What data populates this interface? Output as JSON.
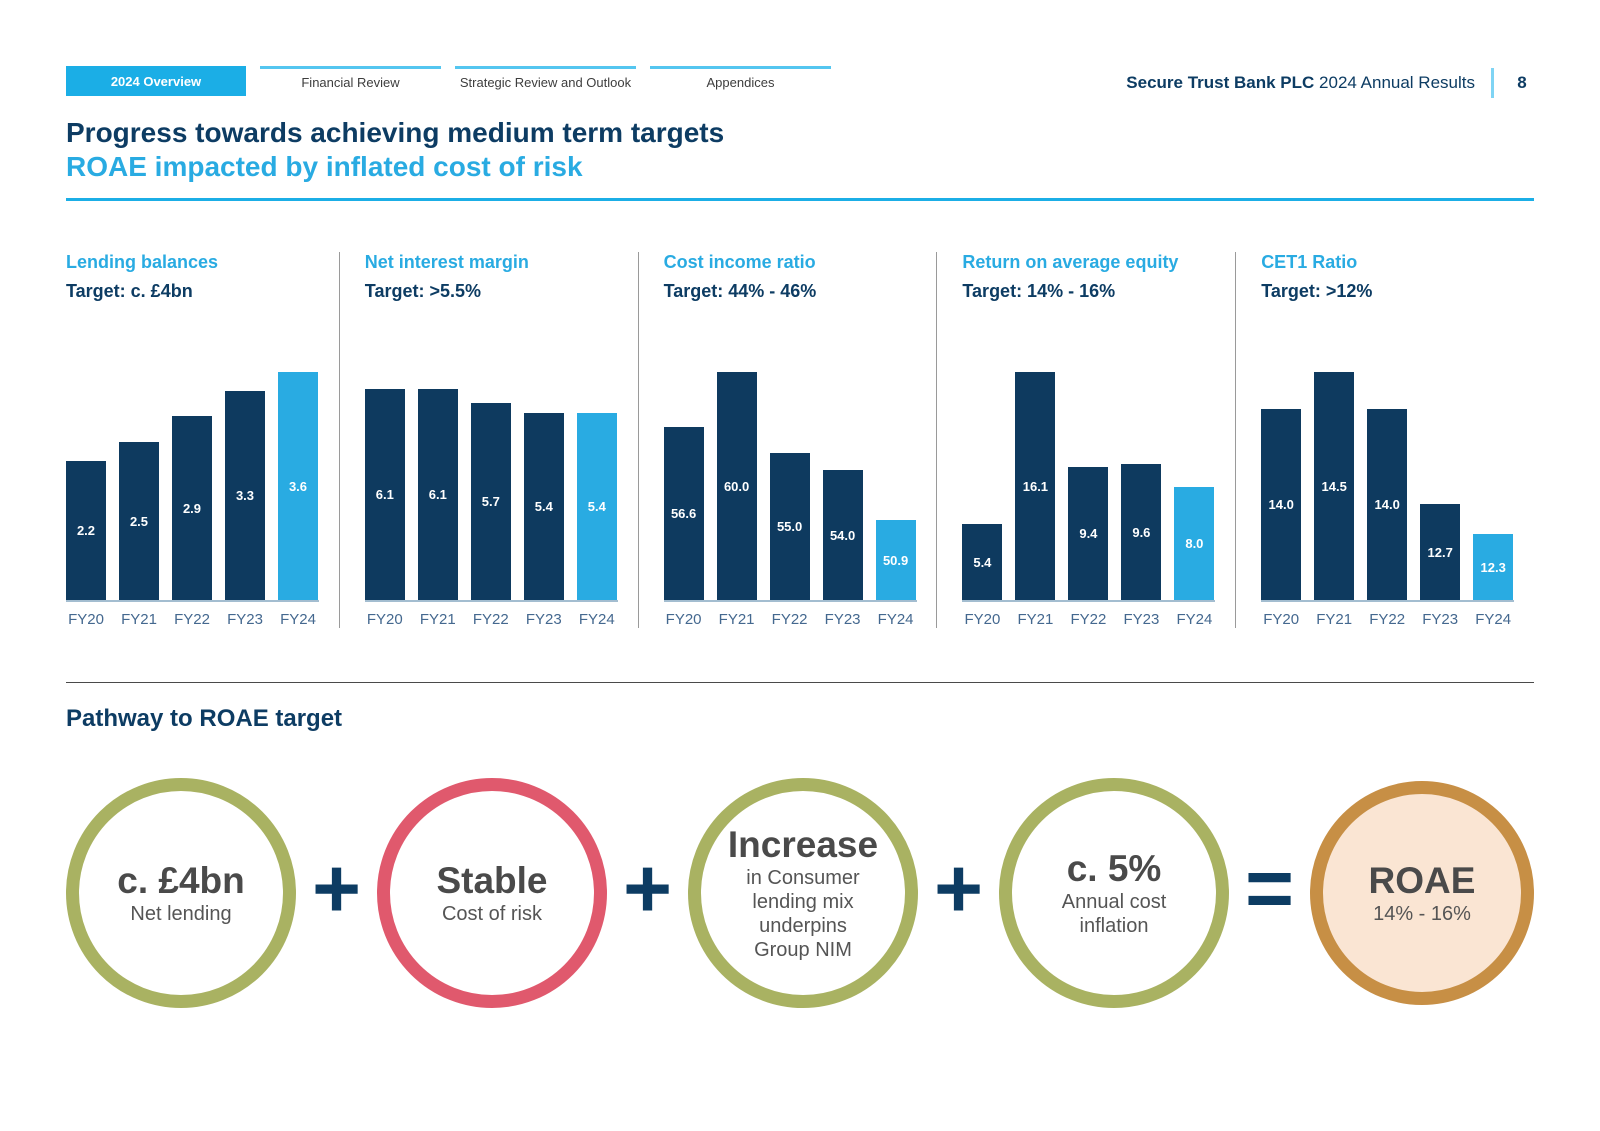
{
  "header": {
    "tabs": [
      {
        "label": "2024 Overview",
        "active": true
      },
      {
        "label": "Financial Review",
        "active": false
      },
      {
        "label": "Strategic Review and Outlook",
        "active": false
      },
      {
        "label": "Appendices",
        "active": false
      }
    ],
    "brand_bold": "Secure Trust Bank PLC",
    "brand_rest": "2024 Annual Results",
    "page_number": "8"
  },
  "title": {
    "line1": "Progress towards achieving medium term targets",
    "line2": "ROAE impacted by inflated cost of risk"
  },
  "colors": {
    "cyan": "#29abe2",
    "tab_cyan": "#1baee6",
    "navy": "#0d3c63",
    "bar_dark": "#0e3a5f",
    "bar_highlight": "#29abe2",
    "tab_line": "#54c6f0",
    "brand_divider": "#7fd4f4",
    "axis": "#a3bdd0",
    "fy_label": "#44688f",
    "separator": "#9a9a9a",
    "divider_dark": "#4a4a4a",
    "olive": "#a9b262",
    "red": "#e0596d",
    "orange": "#c78f45",
    "peach": "#fae5d3"
  },
  "chart_data": [
    {
      "type": "bar",
      "title": "Lending balances",
      "target": "Target: c. £4bn",
      "categories": [
        "FY20",
        "FY21",
        "FY22",
        "FY23",
        "FY24"
      ],
      "values": [
        2.2,
        2.5,
        2.9,
        3.3,
        3.6
      ],
      "labels": [
        "2.2",
        "2.5",
        "2.9",
        "3.3",
        "3.6"
      ],
      "ylim": [
        0,
        3.6
      ],
      "highlight_index": 4,
      "grid": false,
      "legend": false
    },
    {
      "type": "bar",
      "title": "Net interest margin",
      "target": "Target: >5.5%",
      "categories": [
        "FY20",
        "FY21",
        "FY22",
        "FY23",
        "FY24"
      ],
      "values": [
        6.1,
        6.1,
        5.7,
        5.4,
        5.4
      ],
      "labels": [
        "6.1",
        "6.1",
        "5.7",
        "5.4",
        "5.4"
      ],
      "ylim": [
        0,
        6.6
      ],
      "highlight_index": 4,
      "grid": false,
      "legend": false
    },
    {
      "type": "bar",
      "title": "Cost income ratio",
      "target": "Target: 44% - 46%",
      "categories": [
        "FY20",
        "FY21",
        "FY22",
        "FY23",
        "FY24"
      ],
      "values": [
        56.6,
        60.0,
        55.0,
        54.0,
        50.9
      ],
      "labels": [
        "56.6",
        "60.0",
        "55.0",
        "54.0",
        "50.9"
      ],
      "ylim": [
        46,
        60
      ],
      "highlight_index": 4,
      "grid": false,
      "legend": false
    },
    {
      "type": "bar",
      "title": "Return on average equity",
      "target": "Target: 14% - 16%",
      "categories": [
        "FY20",
        "FY21",
        "FY22",
        "FY23",
        "FY24"
      ],
      "values": [
        5.4,
        16.1,
        9.4,
        9.6,
        8.0
      ],
      "labels": [
        "5.4",
        "16.1",
        "9.4",
        "9.6",
        "8.0"
      ],
      "ylim": [
        0,
        16.1
      ],
      "highlight_index": 4,
      "grid": false,
      "legend": false
    },
    {
      "type": "bar",
      "title": "CET1 Ratio",
      "target": "Target: >12%",
      "categories": [
        "FY20",
        "FY21",
        "FY22",
        "FY23",
        "FY24"
      ],
      "values": [
        14.0,
        14.5,
        14.0,
        12.7,
        12.3
      ],
      "labels": [
        "14.0",
        "14.5",
        "14.0",
        "12.7",
        "12.3"
      ],
      "ylim": [
        11.4,
        14.5
      ],
      "highlight_index": 4,
      "grid": false,
      "legend": false
    }
  ],
  "pathway": {
    "heading": "Pathway to ROAE target",
    "operators": [
      "+",
      "+",
      "+",
      "="
    ],
    "items": [
      {
        "title": "c. £4bn",
        "sub": [
          "Net lending"
        ],
        "ring": "#a9b262",
        "fill": "#ffffff"
      },
      {
        "title": "Stable",
        "sub": [
          "Cost of risk"
        ],
        "ring": "#e0596d",
        "fill": "#ffffff"
      },
      {
        "title": "Increase",
        "sub": [
          "in Consumer",
          "lending mix",
          "underpins",
          "Group NIM"
        ],
        "ring": "#a9b262",
        "fill": "#ffffff"
      },
      {
        "title": "c. 5%",
        "sub": [
          "Annual cost",
          "inflation"
        ],
        "ring": "#a9b262",
        "fill": "#ffffff"
      },
      {
        "title": "ROAE",
        "sub": [
          "14% - 16%"
        ],
        "ring": "#c78f45",
        "fill": "#fae5d3"
      }
    ]
  }
}
